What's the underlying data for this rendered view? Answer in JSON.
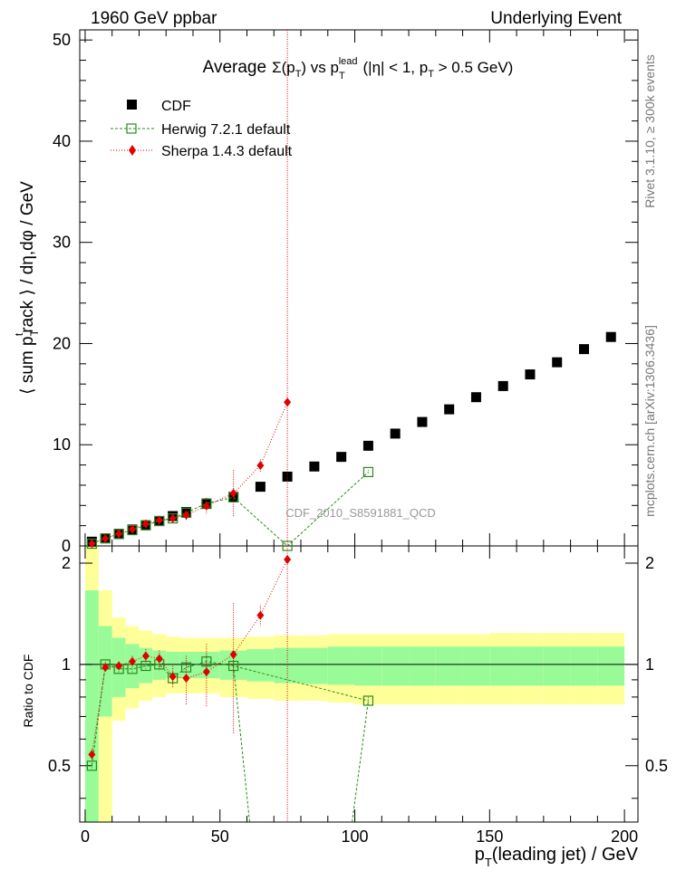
{
  "header": {
    "left": "1960 GeV ppbar",
    "right": "Underlying Event"
  },
  "side": {
    "rivet": "Rivet 3.1.10, ≥ 300k events",
    "mcplots": "mcplots.cern.ch [arXiv:1306.3436]"
  },
  "watermark": "CDF_2010_S8591881_QCD",
  "colors": {
    "cdf": "#000000",
    "herwig": "#2a8a1e",
    "sherpa": "#e00000",
    "band_inner": "#98fb98",
    "band_outer": "#ffff99"
  },
  "chart_data": [
    {
      "type": "scatter",
      "title_parts": {
        "a": "Average",
        "sigma": "Σ(p",
        "sub1": "T",
        "b": ") vs p",
        "sub2": "T",
        "sup2": "lead",
        "c": "(|η| < 1, p",
        "sub3": "T",
        "d": " > 0.5 GeV)"
      },
      "ylabel_parts": {
        "a": "⟨ sum p",
        "sub": "T",
        "sup": "t",
        "b": "rack ⟩ / dη,dφ / GeV"
      },
      "xlim": [
        -2,
        205
      ],
      "ylim": [
        0,
        51
      ],
      "yticks": [
        "0",
        "10",
        "20",
        "30",
        "40",
        "50"
      ],
      "series": [
        {
          "name": "CDF",
          "x": [
            2.5,
            7.5,
            12.5,
            17.5,
            22.5,
            27.5,
            32.5,
            37.5,
            45,
            55,
            65,
            75,
            85,
            95,
            105,
            115,
            125,
            135,
            145,
            155,
            165,
            175,
            185,
            195
          ],
          "y": [
            0.42,
            0.75,
            1.2,
            1.62,
            2.05,
            2.45,
            2.95,
            3.35,
            4.15,
            4.85,
            5.85,
            6.85,
            7.85,
            8.8,
            9.9,
            11.1,
            12.25,
            13.5,
            14.7,
            15.8,
            16.95,
            18.15,
            19.45,
            20.65
          ]
        },
        {
          "name": "Herwig 7.2.1 default",
          "x": [
            2.5,
            7.5,
            12.5,
            17.5,
            22.5,
            27.5,
            32.5,
            37.5,
            45,
            55,
            75,
            105
          ],
          "y": [
            0.22,
            0.75,
            1.17,
            1.56,
            2.04,
            2.47,
            2.72,
            3.28,
            4.2,
            4.8,
            0.0,
            7.3
          ],
          "yerr": [
            0.02,
            0.05,
            0.05,
            0.06,
            0.08,
            0.1,
            0.12,
            0.15,
            0.2,
            0.3,
            0.0,
            0.2
          ]
        },
        {
          "name": "Sherpa 1.4.3 default",
          "x": [
            2.5,
            7.5,
            12.5,
            17.5,
            22.5,
            27.5,
            32.5,
            37.5,
            45,
            55,
            65,
            75
          ],
          "y": [
            0.23,
            0.73,
            1.2,
            1.65,
            2.18,
            2.55,
            2.72,
            3.05,
            3.95,
            5.2,
            7.95,
            14.2
          ],
          "yerr": [
            0.02,
            0.05,
            0.05,
            0.1,
            0.15,
            0.2,
            0.3,
            0.5,
            0.8,
            2.3,
            0.6,
            51
          ]
        }
      ]
    },
    {
      "type": "scatter",
      "ylabel": "Ratio to CDF",
      "xlabel_parts": {
        "a": "p",
        "sub": "T",
        "b": "(leading jet) / GeV"
      },
      "xlim": [
        -2,
        205
      ],
      "ylim": [
        0.34,
        2.25
      ],
      "xticks": [
        "0",
        "50",
        "100",
        "150",
        "200"
      ],
      "yticks": [
        "0.5",
        "1",
        "2"
      ],
      "bands": {
        "edges": [
          0,
          5,
          10,
          15,
          20,
          25,
          30,
          35,
          40,
          50,
          60,
          70,
          80,
          90,
          100,
          110,
          120,
          130,
          140,
          150,
          160,
          170,
          180,
          190,
          200
        ],
        "inner_lo": [
          0.34,
          0.7,
          0.8,
          0.85,
          0.88,
          0.9,
          0.91,
          0.91,
          0.91,
          0.9,
          0.89,
          0.88,
          0.875,
          0.87,
          0.865,
          0.865,
          0.865,
          0.865,
          0.865,
          0.865,
          0.865,
          0.865,
          0.865,
          0.865
        ],
        "inner_hi": [
          1.66,
          1.3,
          1.2,
          1.15,
          1.12,
          1.1,
          1.09,
          1.09,
          1.09,
          1.1,
          1.11,
          1.12,
          1.12,
          1.13,
          1.13,
          1.13,
          1.13,
          1.13,
          1.13,
          1.13,
          1.13,
          1.13,
          1.13,
          1.13
        ],
        "outer_lo": [
          0.34,
          0.34,
          0.68,
          0.74,
          0.78,
          0.8,
          0.82,
          0.82,
          0.82,
          0.8,
          0.79,
          0.78,
          0.78,
          0.77,
          0.76,
          0.76,
          0.76,
          0.76,
          0.76,
          0.76,
          0.76,
          0.76,
          0.76,
          0.76
        ],
        "outer_hi": [
          2.25,
          1.66,
          1.38,
          1.3,
          1.26,
          1.23,
          1.21,
          1.2,
          1.2,
          1.2,
          1.21,
          1.22,
          1.22,
          1.23,
          1.23,
          1.23,
          1.23,
          1.23,
          1.23,
          1.24,
          1.24,
          1.24,
          1.24,
          1.24
        ]
      },
      "series": [
        {
          "name": "Herwig 7.2.1 default",
          "x": [
            2.5,
            7.5,
            12.5,
            17.5,
            22.5,
            27.5,
            32.5,
            37.5,
            45,
            55,
            105
          ],
          "y": [
            0.5,
            1.0,
            0.97,
            0.97,
            0.99,
            1.0,
            0.91,
            0.98,
            1.02,
            0.99,
            0.78
          ],
          "yerr": [
            0.01,
            0.02,
            0.03,
            0.03,
            0.03,
            0.04,
            0.04,
            0.05,
            0.06,
            0.07,
            0.02
          ]
        },
        {
          "name": "Sherpa 1.4.3 default",
          "x": [
            2.5,
            7.5,
            12.5,
            17.5,
            22.5,
            27.5,
            32.5,
            37.5,
            45,
            55,
            65,
            75
          ],
          "y": [
            0.54,
            0.98,
            0.99,
            1.02,
            1.06,
            1.04,
            0.92,
            0.91,
            0.95,
            1.07,
            1.4,
            2.05
          ],
          "yerr": [
            0.02,
            0.03,
            0.03,
            0.04,
            0.05,
            0.06,
            0.07,
            0.15,
            0.2,
            0.45,
            0.1,
            2.0
          ]
        }
      ]
    }
  ]
}
